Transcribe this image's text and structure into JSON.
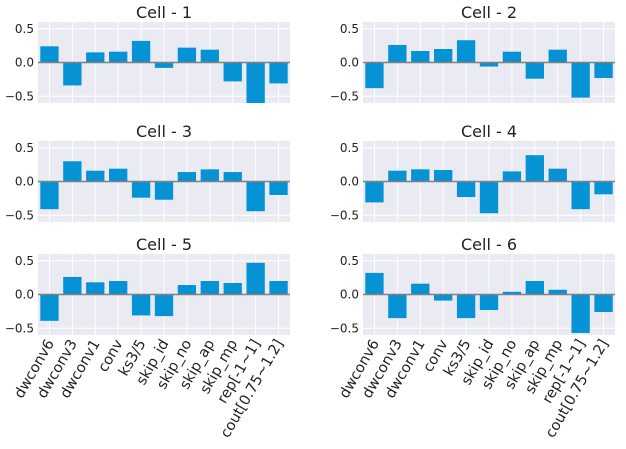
{
  "chart_data": {
    "type": "bar",
    "layout": "grid 3 rows x 2 columns",
    "categories": [
      "dwconv6",
      "dwconv3",
      "dwconv1",
      "conv",
      "ks3/5",
      "skip_id",
      "skip_no",
      "skip_ap",
      "skip_mp",
      "rep[-1~1]",
      "cout[0.75~1.2]"
    ],
    "ylim": [
      -0.6,
      0.6
    ],
    "yticks": [
      -0.5,
      0.0,
      0.5
    ],
    "ytick_labels": [
      "−0.5",
      "0.0",
      "0.5"
    ],
    "bar_color": "#0693d6",
    "zero_line_color": "#808080",
    "panel_background": "#eaeaf2",
    "grid": true,
    "panels": [
      {
        "title": "Cell - 1",
        "values": [
          0.24,
          -0.34,
          0.15,
          0.16,
          0.32,
          -0.08,
          0.22,
          0.19,
          -0.28,
          -0.6,
          -0.31
        ]
      },
      {
        "title": "Cell - 2",
        "values": [
          -0.38,
          0.26,
          0.17,
          0.2,
          0.33,
          -0.06,
          0.16,
          -0.24,
          0.19,
          -0.52,
          -0.23
        ]
      },
      {
        "title": "Cell - 3",
        "values": [
          -0.41,
          0.3,
          0.16,
          0.19,
          -0.24,
          -0.27,
          0.14,
          0.18,
          0.14,
          -0.44,
          -0.2
        ]
      },
      {
        "title": "Cell - 4",
        "values": [
          -0.31,
          0.16,
          0.18,
          0.17,
          -0.23,
          -0.47,
          0.15,
          0.39,
          0.19,
          -0.41,
          -0.19
        ]
      },
      {
        "title": "Cell - 5",
        "values": [
          -0.39,
          0.26,
          0.18,
          0.2,
          -0.31,
          -0.32,
          0.14,
          0.2,
          0.17,
          0.47,
          0.2
        ]
      },
      {
        "title": "Cell - 6",
        "values": [
          0.32,
          -0.35,
          0.16,
          -0.09,
          -0.35,
          -0.23,
          0.04,
          0.2,
          0.07,
          -0.57,
          -0.26
        ]
      }
    ]
  }
}
